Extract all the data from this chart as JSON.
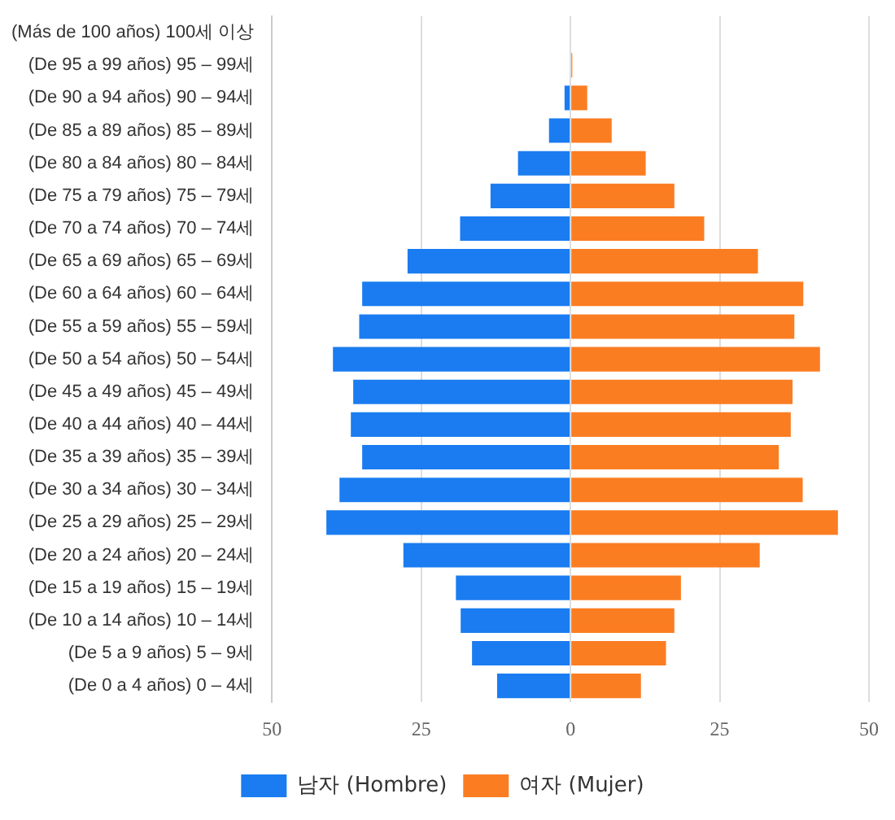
{
  "chart_data": {
    "type": "bar",
    "orientation": "horizontal",
    "stacked": true,
    "categories": [
      "(Más de 100 años) 100세 이상",
      "(De 95 a 99 años) 95 – 99세",
      "(De 90 a 94 años) 90 – 94세",
      "(De 85 a 89 años) 85 – 89세",
      "(De 80 a 84 años) 80 – 84세",
      "(De 75 a 79 años) 75 – 79세",
      "(De 70 a 74 años) 70 – 74세",
      "(De 65 a 69 años) 65 – 69세",
      "(De 60 a 64 años) 60 – 64세",
      "(De 55 a 59 años) 55 – 59세",
      "(De 50 a 54 años) 50 – 54세",
      "(De 45 a 49 años) 45 – 49세",
      "(De 40 a 44 años) 40 – 44세",
      "(De 35 a 39 años) 35 – 39세",
      "(De 30 a 34 años) 30 – 34세",
      "(De 25 a 29 años) 25 – 29세",
      "(De 20 a 24 años) 20 – 24세",
      "(De 15 a 19 años) 15 – 19세",
      "(De 10 a 14 años) 10 – 14세",
      "(De 5 a 9 años) 5 – 9세",
      "(De 0 a 4 años) 0 – 4세"
    ],
    "series": [
      {
        "name": "남자 (Hombre)",
        "color": "#1a7cf0",
        "values": [
          0,
          null,
          -1,
          -3.6,
          -8.8,
          -13.4,
          -18.5,
          -27.3,
          -34.9,
          -35.4,
          -39.8,
          -36.4,
          -36.8,
          -34.9,
          -38.7,
          -40.9,
          -28,
          -19.2,
          -18.4,
          -16.5,
          -12.3
        ]
      },
      {
        "name": "여자 (Mujer)",
        "color": "#fb7d22",
        "values": [
          0,
          0.3,
          2.8,
          6.9,
          12.6,
          17.4,
          22.4,
          31.4,
          39,
          37.5,
          41.8,
          37.2,
          36.9,
          34.9,
          38.9,
          44.8,
          31.7,
          18.5,
          17.4,
          16,
          11.8
        ]
      }
    ],
    "xlim": [
      -50,
      50
    ],
    "xticks": [
      {
        "value": -50,
        "label": "50"
      },
      {
        "value": -25,
        "label": "25"
      },
      0,
      25,
      50
    ],
    "grid": "x",
    "legend": "bottom"
  }
}
